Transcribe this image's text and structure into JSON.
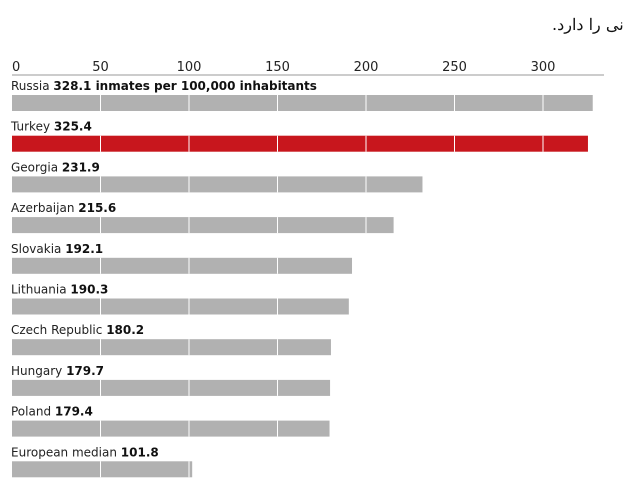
{
  "chart_data": {
    "type": "bar",
    "orientation": "horizontal",
    "title": "در بین کشور های اروپایی ترکیه دومین نرخ زندانی را دارد.",
    "xlim": [
      0,
      330
    ],
    "xticks": [
      0,
      50,
      100,
      150,
      200,
      250,
      300
    ],
    "value_suffix": "inmates per 100,000 inhabitants",
    "categories": [
      "Russia",
      "Turkey",
      "Georgia",
      "Azerbaijan",
      "Slovakia",
      "Lithuania",
      "Czech Republic",
      "Hungary",
      "Poland",
      "European median"
    ],
    "values": [
      328.1,
      325.4,
      231.9,
      215.6,
      192.1,
      190.3,
      180.2,
      179.7,
      179.4,
      101.8
    ],
    "value_labels": [
      "328.1",
      "325.4",
      "231.9",
      "215.6",
      "192.1",
      "190.3",
      "180.2",
      "179.7",
      "179.4",
      "101.8"
    ],
    "highlight": "Turkey",
    "colors": {
      "bar": "#b1b1b1",
      "highlight": "#c8161d",
      "grid": "#ffffff",
      "axis": "#999999"
    }
  }
}
